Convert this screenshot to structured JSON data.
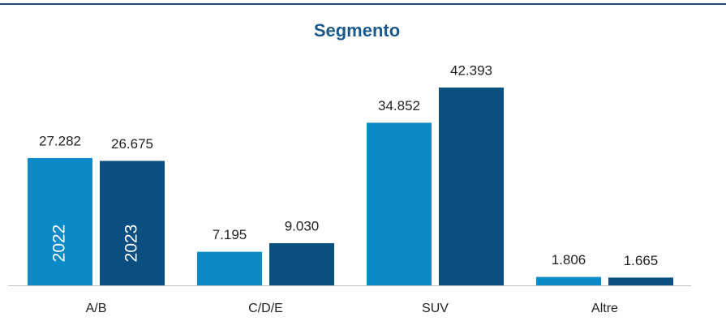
{
  "chart_data": {
    "type": "bar",
    "title": "Segmento",
    "categories": [
      "A/B",
      "C/D/E",
      "SUV",
      "Altre"
    ],
    "series": [
      {
        "name": "2022",
        "color": "#0a8bc8",
        "values": [
          27282,
          7195,
          34852,
          1806
        ],
        "value_labels": [
          "27.282",
          "7.195",
          "34.852",
          "1.806"
        ]
      },
      {
        "name": "2023",
        "color": "#0b4e80",
        "values": [
          26675,
          9030,
          42393,
          1665
        ],
        "value_labels": [
          "26.675",
          "9.030",
          "42.393",
          "1.665"
        ]
      }
    ],
    "ylim": [
      0,
      45000
    ]
  }
}
